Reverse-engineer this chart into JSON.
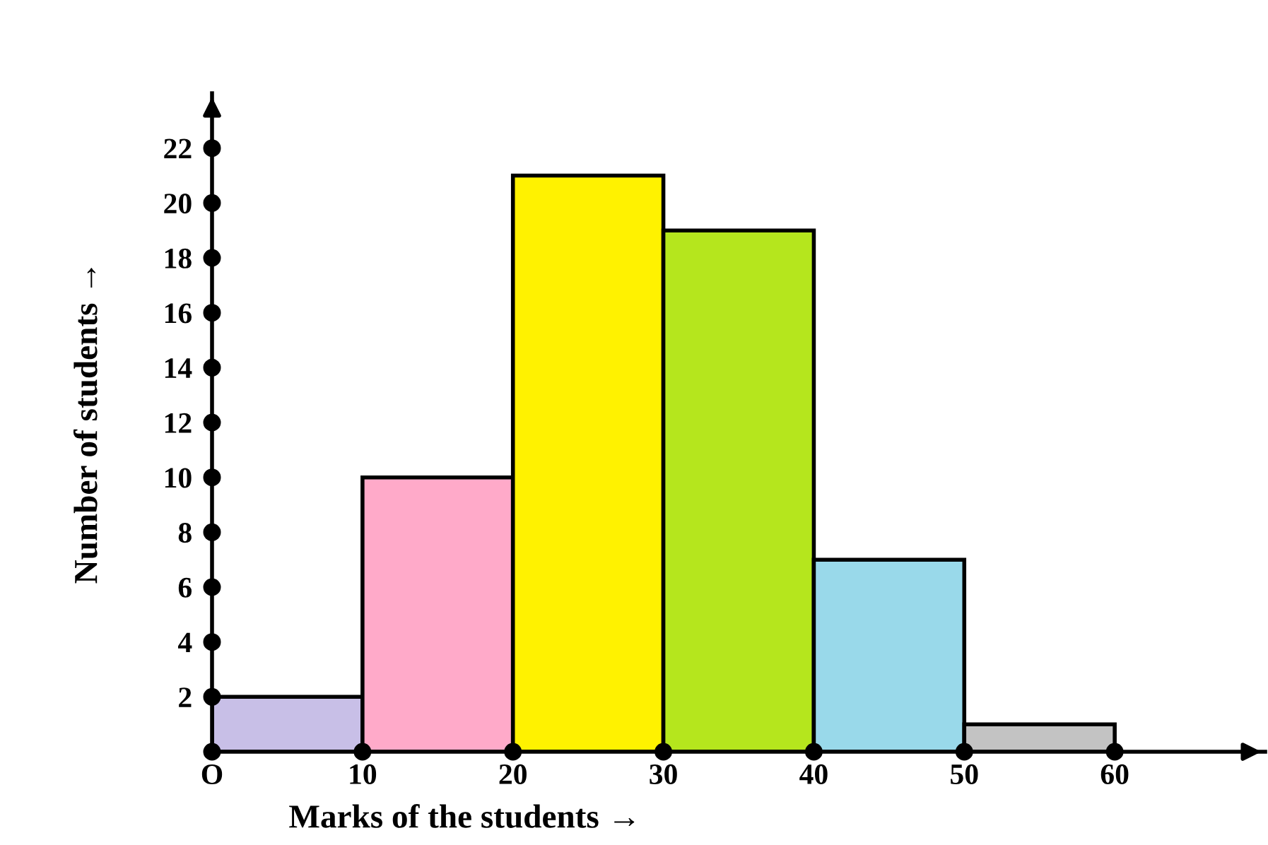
{
  "chart_data": {
    "type": "histogram",
    "xlabel": "Marks of the students →",
    "ylabel": "Number of students →",
    "bins": [
      0,
      10,
      20,
      30,
      40,
      50,
      60
    ],
    "values": [
      2,
      10,
      21,
      19,
      7,
      1
    ],
    "colors": [
      "#c8bfe7",
      "#ffaac9",
      "#fff200",
      "#b5e61d",
      "#99d9ea",
      "#c3c3c3"
    ],
    "xlim": [
      0,
      70
    ],
    "ylim": [
      0,
      24
    ],
    "xticks": [
      {
        "value": 0,
        "label": "O"
      },
      10,
      20,
      30,
      40,
      50,
      60
    ],
    "yticks": [
      2,
      4,
      6,
      8,
      10,
      12,
      14,
      16,
      18,
      20,
      22
    ],
    "grid": false,
    "legend": false
  }
}
